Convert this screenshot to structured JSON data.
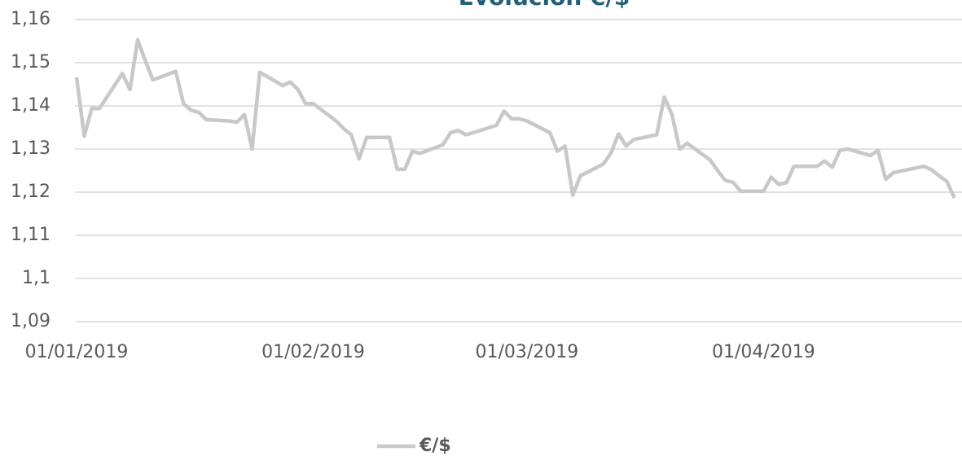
{
  "chart_data": {
    "type": "line",
    "title": "Evolución €/$",
    "x": [
      "2019-01-01",
      "2019-01-02",
      "2019-01-03",
      "2019-01-04",
      "2019-01-07",
      "2019-01-08",
      "2019-01-09",
      "2019-01-10",
      "2019-01-11",
      "2019-01-14",
      "2019-01-15",
      "2019-01-16",
      "2019-01-17",
      "2019-01-18",
      "2019-01-21",
      "2019-01-22",
      "2019-01-23",
      "2019-01-24",
      "2019-01-25",
      "2019-01-28",
      "2019-01-29",
      "2019-01-30",
      "2019-01-31",
      "2019-02-01",
      "2019-02-04",
      "2019-02-05",
      "2019-02-06",
      "2019-02-07",
      "2019-02-08",
      "2019-02-11",
      "2019-02-12",
      "2019-02-13",
      "2019-02-14",
      "2019-02-15",
      "2019-02-18",
      "2019-02-19",
      "2019-02-20",
      "2019-02-21",
      "2019-02-22",
      "2019-02-25",
      "2019-02-26",
      "2019-02-27",
      "2019-02-28",
      "2019-03-01",
      "2019-03-04",
      "2019-03-05",
      "2019-03-06",
      "2019-03-07",
      "2019-03-08",
      "2019-03-11",
      "2019-03-12",
      "2019-03-13",
      "2019-03-14",
      "2019-03-15",
      "2019-03-18",
      "2019-03-19",
      "2019-03-20",
      "2019-03-21",
      "2019-03-22",
      "2019-03-25",
      "2019-03-26",
      "2019-03-27",
      "2019-03-28",
      "2019-03-29",
      "2019-04-01",
      "2019-04-02",
      "2019-04-03",
      "2019-04-04",
      "2019-04-05",
      "2019-04-08",
      "2019-04-09",
      "2019-04-10",
      "2019-04-11",
      "2019-04-12",
      "2019-04-15",
      "2019-04-16",
      "2019-04-17",
      "2019-04-18",
      "2019-04-22",
      "2019-04-23",
      "2019-04-24",
      "2019-04-25",
      "2019-04-26"
    ],
    "series": [
      {
        "name": "€/$",
        "color": "#c8c8c8",
        "values": [
          1.1466,
          1.133,
          1.1394,
          1.1394,
          1.1475,
          1.1438,
          1.1553,
          1.1505,
          1.146,
          1.148,
          1.1405,
          1.139,
          1.1385,
          1.1368,
          1.1365,
          1.1362,
          1.138,
          1.13,
          1.1478,
          1.1447,
          1.1455,
          1.1438,
          1.1405,
          1.1405,
          1.1365,
          1.1347,
          1.1333,
          1.1277,
          1.1327,
          1.1327,
          1.1253,
          1.1253,
          1.1295,
          1.129,
          1.131,
          1.1338,
          1.1343,
          1.1333,
          1.1338,
          1.1355,
          1.1388,
          1.137,
          1.137,
          1.1365,
          1.1338,
          1.1295,
          1.1307,
          1.1193,
          1.1238,
          1.1265,
          1.129,
          1.1335,
          1.1307,
          1.1322,
          1.1333,
          1.142,
          1.138,
          1.13,
          1.1313,
          1.1275,
          1.125,
          1.1227,
          1.1223,
          1.1202,
          1.1202,
          1.1235,
          1.1218,
          1.1222,
          1.126,
          1.126,
          1.1272,
          1.1258,
          1.1297,
          1.13,
          1.1285,
          1.1297,
          1.123,
          1.1245,
          1.126,
          1.1252,
          1.1238,
          1.1225,
          1.1187
        ]
      }
    ],
    "xlim": [
      "2019-01-01",
      "2019-04-27"
    ],
    "xticks": [
      {
        "value": "2019-01-01",
        "label": "01/01/2019"
      },
      {
        "value": "2019-02-01",
        "label": "01/02/2019"
      },
      {
        "value": "2019-03-01",
        "label": "01/03/2019"
      },
      {
        "value": "2019-04-01",
        "label": "01/04/2019"
      }
    ],
    "ylim": [
      1.09,
      1.16
    ],
    "yticks": [
      {
        "value": 1.09,
        "label": "1,09"
      },
      {
        "value": 1.1,
        "label": "1,1"
      },
      {
        "value": 1.11,
        "label": "1,11"
      },
      {
        "value": 1.12,
        "label": "1,12"
      },
      {
        "value": 1.13,
        "label": "1,13"
      },
      {
        "value": 1.14,
        "label": "1,14"
      },
      {
        "value": 1.15,
        "label": "1,15"
      },
      {
        "value": 1.16,
        "label": "1,16"
      }
    ],
    "grid": true,
    "legend": "bottom"
  }
}
